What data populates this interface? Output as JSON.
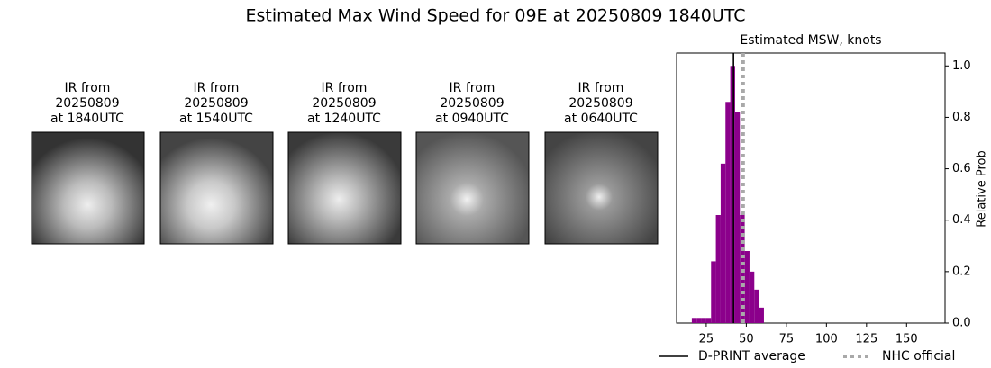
{
  "title": "Estimated Max Wind Speed for 09E at 20250809 1840UTC",
  "panels": [
    {
      "lines": [
        "IR from",
        "20250809",
        "at 1840UTC"
      ]
    },
    {
      "lines": [
        "IR from",
        "20250809",
        "at 1540UTC"
      ]
    },
    {
      "lines": [
        "IR from",
        "20250809",
        "at 1240UTC"
      ]
    },
    {
      "lines": [
        "IR from",
        "20250809",
        "at 0940UTC"
      ]
    },
    {
      "lines": [
        "IR from",
        "20250809",
        "at 0640UTC"
      ]
    }
  ],
  "chart_data": {
    "type": "histogram",
    "title": "Estimated MSW, knots",
    "ylabel": "Relative Prob",
    "color": "#8b008b",
    "bins": [
      16,
      19,
      22,
      25,
      28,
      31,
      34,
      37,
      40,
      43,
      46,
      49,
      52,
      55,
      58,
      61
    ],
    "values": [
      0.02,
      0.02,
      0.02,
      0.02,
      0.24,
      0.42,
      0.62,
      0.86,
      1.0,
      0.82,
      0.42,
      0.28,
      0.2,
      0.13,
      0.06
    ],
    "xlim": [
      6.5,
      174
    ],
    "ylim": [
      0,
      1.05
    ],
    "xticks": [
      25,
      50,
      75,
      100,
      125,
      150
    ],
    "yticks": [
      {
        "value": 0,
        "label": "0.0"
      },
      {
        "value": 0.2,
        "label": "0.2"
      },
      {
        "value": 0.4,
        "label": "0.4"
      },
      {
        "value": 0.6,
        "label": "0.6"
      },
      {
        "value": 0.8,
        "label": "0.8"
      },
      {
        "value": 1,
        "label": "1.0"
      }
    ],
    "lines": [
      {
        "name": "D-PRINT average",
        "x": 42,
        "color": "#000000",
        "style": "solid"
      },
      {
        "name": "NHC official",
        "x": 48,
        "color": "#a9a9a9",
        "style": "dotted"
      }
    ]
  }
}
